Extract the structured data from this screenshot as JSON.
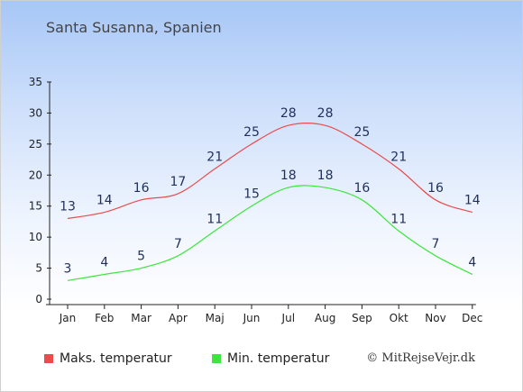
{
  "page": {
    "title": "Santa Susanna, Spanien",
    "credit": "© MitRejseVejr.dk"
  },
  "colors": {
    "max": "#e84c4c",
    "min": "#3ce63c",
    "label": "#1f2f5a",
    "axis": "#222222"
  },
  "chart_data": {
    "type": "line",
    "title": "Santa Susanna, Spanien",
    "categories": [
      "Jan",
      "Feb",
      "Mar",
      "Apr",
      "Maj",
      "Jun",
      "Jul",
      "Aug",
      "Sep",
      "Okt",
      "Nov",
      "Dec"
    ],
    "ylim": [
      0,
      35
    ],
    "yticks": [
      0,
      5,
      10,
      15,
      20,
      25,
      30,
      35
    ],
    "grid": false,
    "legend": "bottom-left",
    "series": [
      {
        "name": "Maks. temperatur",
        "color": "#e84c4c",
        "values": [
          13,
          14,
          16,
          17,
          21,
          25,
          28,
          28,
          25,
          21,
          16,
          14
        ]
      },
      {
        "name": "Min. temperatur",
        "color": "#3ce63c",
        "values": [
          3,
          4,
          5,
          7,
          11,
          15,
          18,
          18,
          16,
          11,
          7,
          4
        ]
      }
    ]
  }
}
